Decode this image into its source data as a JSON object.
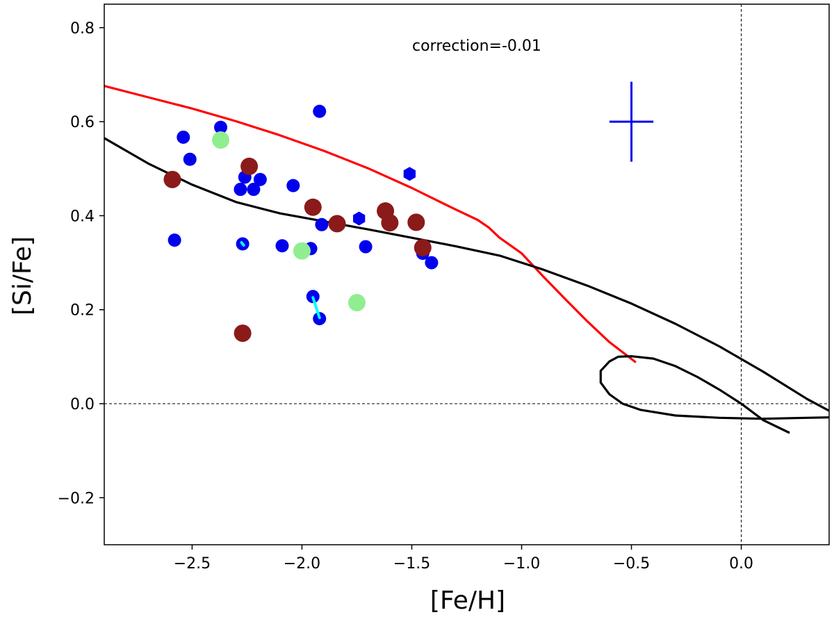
{
  "chart_data": {
    "type": "scatter",
    "title": "",
    "xlabel": "[Fe/H]",
    "ylabel": "[Si/Fe]",
    "xlim": [
      -2.9,
      0.4
    ],
    "ylim": [
      -0.3,
      0.85
    ],
    "xticks": [
      {
        "value": -2.5,
        "label": "−2.5"
      },
      {
        "value": -2.0,
        "label": "−2.0"
      },
      {
        "value": -1.5,
        "label": "−1.5"
      },
      {
        "value": -1.0,
        "label": "−1.0"
      },
      {
        "value": -0.5,
        "label": "−0.5"
      },
      {
        "value": 0.0,
        "label": "0.0"
      }
    ],
    "yticks": [
      {
        "value": -0.2,
        "label": "−0.2"
      },
      {
        "value": 0.0,
        "label": "0.0"
      },
      {
        "value": 0.2,
        "label": "0.2"
      },
      {
        "value": 0.4,
        "label": "0.4"
      },
      {
        "value": 0.6,
        "label": "0.6"
      },
      {
        "value": 0.8,
        "label": "0.8"
      }
    ],
    "annotation": "correction=-0.01",
    "grid": false,
    "colors": {
      "blue": "#0000ee",
      "darkred": "#8b1a1a",
      "lightgreen": "#90ee90",
      "red": "#ff0000",
      "black": "#000000",
      "cyan": "#00ffff"
    },
    "series": [
      {
        "marker": "circle",
        "color": "#0000ee",
        "points": [
          [
            -2.54,
            0.567
          ],
          [
            -2.51,
            0.52
          ],
          [
            -2.37,
            0.588
          ],
          [
            -2.58,
            0.348
          ],
          [
            -2.28,
            0.456
          ],
          [
            -2.26,
            0.482
          ],
          [
            -2.22,
            0.456
          ],
          [
            -2.19,
            0.477
          ],
          [
            -2.04,
            0.464
          ],
          [
            -1.92,
            0.622
          ],
          [
            -2.27,
            0.34
          ],
          [
            -2.09,
            0.336
          ],
          [
            -1.96,
            0.33
          ],
          [
            -1.91,
            0.381
          ],
          [
            -1.71,
            0.334
          ],
          [
            -1.45,
            0.32
          ],
          [
            -1.41,
            0.3
          ],
          [
            -1.95,
            0.228
          ],
          [
            -1.92,
            0.181
          ]
        ]
      },
      {
        "marker": "hexagon",
        "color": "#0000ee",
        "points": [
          [
            -1.51,
            0.489
          ],
          [
            -1.74,
            0.394
          ]
        ]
      },
      {
        "marker": "circle-large",
        "color": "#8b1a1a",
        "points": [
          [
            -2.59,
            0.477
          ],
          [
            -2.24,
            0.505
          ],
          [
            -1.95,
            0.418
          ],
          [
            -1.84,
            0.383
          ],
          [
            -1.62,
            0.41
          ],
          [
            -1.6,
            0.385
          ],
          [
            -1.48,
            0.386
          ],
          [
            -1.45,
            0.332
          ],
          [
            -2.27,
            0.15
          ]
        ]
      },
      {
        "marker": "circle-large",
        "color": "#90ee90",
        "points": [
          [
            -2.37,
            0.561
          ],
          [
            -2.0,
            0.325
          ],
          [
            -1.75,
            0.215
          ]
        ]
      }
    ],
    "connectors": [
      {
        "color": "#00ffff",
        "points": [
          [
            -1.95,
            0.226
          ],
          [
            -1.92,
            0.183
          ]
        ]
      },
      {
        "color": "#00ffff",
        "points": [
          [
            -2.275,
            0.343
          ],
          [
            -2.265,
            0.337
          ]
        ]
      }
    ],
    "error_bar": {
      "x": -0.5,
      "y": 0.6,
      "xerr": 0.1,
      "yerr": 0.085,
      "color": "#0000ee"
    },
    "model_curves": [
      {
        "color": "#ff0000",
        "points": [
          [
            -2.9,
            0.676
          ],
          [
            -2.7,
            0.652
          ],
          [
            -2.5,
            0.628
          ],
          [
            -2.3,
            0.601
          ],
          [
            -2.1,
            0.571
          ],
          [
            -1.9,
            0.538
          ],
          [
            -1.7,
            0.501
          ],
          [
            -1.5,
            0.459
          ],
          [
            -1.3,
            0.413
          ],
          [
            -1.2,
            0.391
          ],
          [
            -1.15,
            0.375
          ],
          [
            -1.1,
            0.353
          ],
          [
            -1.0,
            0.32
          ],
          [
            -0.9,
            0.27
          ],
          [
            -0.8,
            0.222
          ],
          [
            -0.7,
            0.175
          ],
          [
            -0.6,
            0.131
          ],
          [
            -0.48,
            0.088
          ]
        ]
      },
      {
        "color": "#000000",
        "points": [
          [
            -2.9,
            0.565
          ],
          [
            -2.7,
            0.511
          ],
          [
            -2.5,
            0.466
          ],
          [
            -2.3,
            0.429
          ],
          [
            -2.1,
            0.405
          ],
          [
            -1.9,
            0.388
          ],
          [
            -1.7,
            0.371
          ],
          [
            -1.5,
            0.353
          ],
          [
            -1.3,
            0.335
          ],
          [
            -1.1,
            0.315
          ],
          [
            -0.9,
            0.285
          ],
          [
            -0.7,
            0.251
          ],
          [
            -0.5,
            0.213
          ],
          [
            -0.3,
            0.17
          ],
          [
            -0.1,
            0.122
          ],
          [
            0.1,
            0.068
          ],
          [
            0.3,
            0.01
          ],
          [
            0.4,
            -0.015
          ]
        ]
      },
      {
        "color": "#000000",
        "points": [
          [
            0.22,
            -0.062
          ],
          [
            0.1,
            -0.035
          ],
          [
            0.0,
            0.0
          ],
          [
            -0.1,
            0.03
          ],
          [
            -0.2,
            0.057
          ],
          [
            -0.3,
            0.08
          ],
          [
            -0.4,
            0.096
          ],
          [
            -0.5,
            0.101
          ],
          [
            -0.56,
            0.1
          ],
          [
            -0.6,
            0.09
          ],
          [
            -0.64,
            0.07
          ],
          [
            -0.64,
            0.045
          ],
          [
            -0.6,
            0.02
          ],
          [
            -0.54,
            0.0
          ],
          [
            -0.46,
            -0.013
          ],
          [
            -0.3,
            -0.025
          ],
          [
            -0.1,
            -0.03
          ],
          [
            0.1,
            -0.032
          ],
          [
            0.3,
            -0.03
          ],
          [
            0.4,
            -0.029
          ]
        ]
      }
    ],
    "reference_lines": [
      {
        "orientation": "horizontal",
        "value": 0.0,
        "style": "dashed"
      },
      {
        "orientation": "vertical",
        "value": 0.0,
        "style": "dashed"
      }
    ]
  }
}
